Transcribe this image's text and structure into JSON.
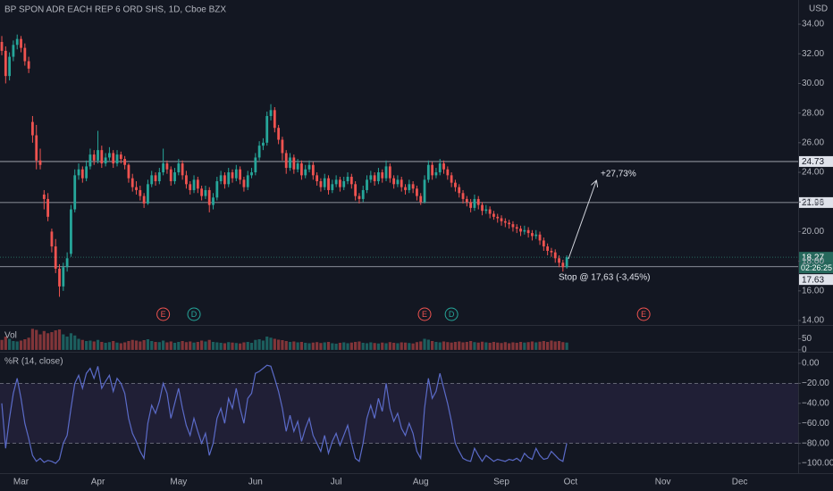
{
  "header": {
    "title": "BP SPON ADR EACH REP 6 ORD SHS, 1D, Cboe BZX",
    "currency": "USD"
  },
  "chart_data": [
    {
      "type": "candlestick",
      "up_color": "#26a69a",
      "down_color": "#ef5350",
      "xlim": [
        -0.47,
        207.2
      ],
      "ylim": [
        13.7,
        35.63
      ],
      "grid": false,
      "xticks": [
        {
          "value": 5,
          "label": "Mar"
        },
        {
          "value": 25,
          "label": "Apr"
        },
        {
          "value": 46,
          "label": "May"
        },
        {
          "value": 66,
          "label": "Jun"
        },
        {
          "value": 87,
          "label": "Jul"
        },
        {
          "value": 109,
          "label": "Aug"
        },
        {
          "value": 130,
          "label": "Sep"
        },
        {
          "value": 148,
          "label": "Oct"
        },
        {
          "value": 172,
          "label": "Nov"
        },
        {
          "value": 192,
          "label": "Dec"
        }
      ],
      "yticks": [
        {
          "value": 34,
          "label": "34.00"
        },
        {
          "value": 32,
          "label": "32.00"
        },
        {
          "value": 30,
          "label": "30.00"
        },
        {
          "value": 28,
          "label": "28.00"
        },
        {
          "value": 26,
          "label": "26.00"
        },
        {
          "value": 24,
          "label": "24.00"
        },
        {
          "value": 22,
          "label": "22.00"
        },
        {
          "value": 20,
          "label": "20.00"
        },
        {
          "value": 18,
          "label": "18.00"
        },
        {
          "value": 16,
          "label": "16.00"
        },
        {
          "value": 14,
          "label": "14.00"
        }
      ],
      "price_lines": [
        {
          "value": 24.73,
          "label": "24.73"
        },
        {
          "value": 21.96,
          "label": "21.96"
        },
        {
          "value": 17.63,
          "label": "17.63"
        }
      ],
      "last_price": {
        "value": 18.27,
        "label": "18.27",
        "countdown": "02:26:25",
        "color": "#26685c"
      },
      "annotations": [
        "+27,73%",
        "Stop @ 17,63 (-3,45%)"
      ],
      "events": [
        {
          "label": "E",
          "at": 42,
          "color": "#ef5350"
        },
        {
          "label": "D",
          "at": 50,
          "color": "#26a69a"
        },
        {
          "label": "E",
          "at": 110,
          "color": "#ef5350"
        },
        {
          "label": "D",
          "at": 117,
          "color": "#26a69a"
        },
        {
          "label": "E",
          "at": 167,
          "color": "#ef5350"
        }
      ],
      "ohlc": [
        [
          32.8,
          33.2,
          31.9,
          32.2
        ],
        [
          32.2,
          32.5,
          30.0,
          30.5
        ],
        [
          30.5,
          32.1,
          30.2,
          31.8
        ],
        [
          31.8,
          32.9,
          31.5,
          32.6
        ],
        [
          32.6,
          33.3,
          32.3,
          33.0
        ],
        [
          33.0,
          33.2,
          32.1,
          32.4
        ],
        [
          32.4,
          32.7,
          31.2,
          31.5
        ],
        [
          31.5,
          31.8,
          30.7,
          31.0
        ],
        [
          27.4,
          27.8,
          26.0,
          26.5
        ],
        [
          26.5,
          27.2,
          24.2,
          24.8
        ],
        [
          24.8,
          25.6,
          24.2,
          24.5
        ],
        [
          22.5,
          22.8,
          21.5,
          22.2
        ],
        [
          22.2,
          22.6,
          20.7,
          21.0
        ],
        [
          20.0,
          20.2,
          18.6,
          19.0
        ],
        [
          19.0,
          19.5,
          17.2,
          17.5
        ],
        [
          17.5,
          17.8,
          15.6,
          16.3
        ],
        [
          16.3,
          17.9,
          16.0,
          17.6
        ],
        [
          17.6,
          18.6,
          17.3,
          18.2
        ],
        [
          18.5,
          21.8,
          18.3,
          21.5
        ],
        [
          21.5,
          24.2,
          21.3,
          23.8
        ],
        [
          23.8,
          24.6,
          23.5,
          24.2
        ],
        [
          24.2,
          24.4,
          23.3,
          23.6
        ],
        [
          23.6,
          24.8,
          23.4,
          24.4
        ],
        [
          24.4,
          25.6,
          24.2,
          25.2
        ],
        [
          25.2,
          25.5,
          24.5,
          24.8
        ],
        [
          24.8,
          26.8,
          24.6,
          25.5
        ],
        [
          25.5,
          25.8,
          24.3,
          24.6
        ],
        [
          24.6,
          25.3,
          24.4,
          25.0
        ],
        [
          25.0,
          25.7,
          24.8,
          25.3
        ],
        [
          25.3,
          25.5,
          24.3,
          24.6
        ],
        [
          24.6,
          25.5,
          24.4,
          25.2
        ],
        [
          25.2,
          25.4,
          24.6,
          24.9
        ],
        [
          24.9,
          25.1,
          24.2,
          24.5
        ],
        [
          24.5,
          24.6,
          23.3,
          23.6
        ],
        [
          23.6,
          23.9,
          22.7,
          23.0
        ],
        [
          23.0,
          23.4,
          22.5,
          22.8
        ],
        [
          22.8,
          23.1,
          22.1,
          22.4
        ],
        [
          22.4,
          22.6,
          21.6,
          21.9
        ],
        [
          21.9,
          23.5,
          21.8,
          23.2
        ],
        [
          23.2,
          24.1,
          23.0,
          23.8
        ],
        [
          23.8,
          24.0,
          23.1,
          23.4
        ],
        [
          23.4,
          24.3,
          23.2,
          24.0
        ],
        [
          24.0,
          25.6,
          23.8,
          24.6
        ],
        [
          24.6,
          24.8,
          23.9,
          24.2
        ],
        [
          24.2,
          24.4,
          23.1,
          23.4
        ],
        [
          23.4,
          24.3,
          23.2,
          24.0
        ],
        [
          24.0,
          24.9,
          23.8,
          24.6
        ],
        [
          24.6,
          24.8,
          23.5,
          23.8
        ],
        [
          23.8,
          24.1,
          22.9,
          23.2
        ],
        [
          23.2,
          23.4,
          22.5,
          22.8
        ],
        [
          22.8,
          23.8,
          22.6,
          23.5
        ],
        [
          23.5,
          23.7,
          22.6,
          22.9
        ],
        [
          22.9,
          23.1,
          22.1,
          22.4
        ],
        [
          22.4,
          23.1,
          22.2,
          22.8
        ],
        [
          22.8,
          23.0,
          21.3,
          21.8
        ],
        [
          21.8,
          22.6,
          21.5,
          22.3
        ],
        [
          22.3,
          23.7,
          22.1,
          23.4
        ],
        [
          23.4,
          24.1,
          23.2,
          23.8
        ],
        [
          23.8,
          24.0,
          22.9,
          23.2
        ],
        [
          23.2,
          24.3,
          23.0,
          24.0
        ],
        [
          24.0,
          24.2,
          23.3,
          23.6
        ],
        [
          23.6,
          24.5,
          23.4,
          24.2
        ],
        [
          24.2,
          24.4,
          23.2,
          23.5
        ],
        [
          23.5,
          23.7,
          22.7,
          23.0
        ],
        [
          23.0,
          24.1,
          22.8,
          23.8
        ],
        [
          23.8,
          24.3,
          23.6,
          24.0
        ],
        [
          24.0,
          25.3,
          23.8,
          25.0
        ],
        [
          25.0,
          26.1,
          24.8,
          25.8
        ],
        [
          25.8,
          26.3,
          25.5,
          26.0
        ],
        [
          26.0,
          28.1,
          25.8,
          27.8
        ],
        [
          27.8,
          28.6,
          27.5,
          28.2
        ],
        [
          28.2,
          28.4,
          26.7,
          27.0
        ],
        [
          27.0,
          27.2,
          25.9,
          26.2
        ],
        [
          26.2,
          26.4,
          24.8,
          25.3
        ],
        [
          25.3,
          25.5,
          23.9,
          24.3
        ],
        [
          24.3,
          25.3,
          24.1,
          25.0
        ],
        [
          25.0,
          25.2,
          23.9,
          24.2
        ],
        [
          24.2,
          24.9,
          24.0,
          24.6
        ],
        [
          24.6,
          24.8,
          23.5,
          23.8
        ],
        [
          23.8,
          24.5,
          23.6,
          24.2
        ],
        [
          24.2,
          24.8,
          24.0,
          24.5
        ],
        [
          24.5,
          24.7,
          23.5,
          23.8
        ],
        [
          23.8,
          24.0,
          23.1,
          23.4
        ],
        [
          23.4,
          23.6,
          22.7,
          23.0
        ],
        [
          23.0,
          23.9,
          22.8,
          23.6
        ],
        [
          23.6,
          23.8,
          22.5,
          22.8
        ],
        [
          22.8,
          23.5,
          22.6,
          23.2
        ],
        [
          23.2,
          23.8,
          23.0,
          23.5
        ],
        [
          23.5,
          23.7,
          22.7,
          23.0
        ],
        [
          23.0,
          23.7,
          22.8,
          23.4
        ],
        [
          23.4,
          24.0,
          23.2,
          23.7
        ],
        [
          23.7,
          23.9,
          22.9,
          23.2
        ],
        [
          23.2,
          23.4,
          22.1,
          22.4
        ],
        [
          22.4,
          22.6,
          21.9,
          22.2
        ],
        [
          22.2,
          23.1,
          22.0,
          22.8
        ],
        [
          22.8,
          23.8,
          22.6,
          23.5
        ],
        [
          23.5,
          24.1,
          23.3,
          23.8
        ],
        [
          23.8,
          24.0,
          23.1,
          23.4
        ],
        [
          23.4,
          24.3,
          23.2,
          24.0
        ],
        [
          24.0,
          24.2,
          23.3,
          23.6
        ],
        [
          23.6,
          24.8,
          23.4,
          24.4
        ],
        [
          24.4,
          24.6,
          23.3,
          23.6
        ],
        [
          23.6,
          23.8,
          22.9,
          23.2
        ],
        [
          23.2,
          23.8,
          23.0,
          23.5
        ],
        [
          23.5,
          23.7,
          22.7,
          23.0
        ],
        [
          23.0,
          23.2,
          22.5,
          22.8
        ],
        [
          22.8,
          23.5,
          22.6,
          23.2
        ],
        [
          23.2,
          23.4,
          22.6,
          22.9
        ],
        [
          22.9,
          23.1,
          22.1,
          22.4
        ],
        [
          22.4,
          22.6,
          21.8,
          22.0
        ],
        [
          22.0,
          23.8,
          21.9,
          23.5
        ],
        [
          23.5,
          24.8,
          23.3,
          24.5
        ],
        [
          24.5,
          24.7,
          23.5,
          23.8
        ],
        [
          23.8,
          24.3,
          23.6,
          24.0
        ],
        [
          24.0,
          24.9,
          23.8,
          24.6
        ],
        [
          24.6,
          24.8,
          23.9,
          24.2
        ],
        [
          24.2,
          24.4,
          23.5,
          23.8
        ],
        [
          23.8,
          24.0,
          23.0,
          23.3
        ],
        [
          23.3,
          23.5,
          22.7,
          23.0
        ],
        [
          23.0,
          23.2,
          22.3,
          22.6
        ],
        [
          22.6,
          22.8,
          21.9,
          22.2
        ],
        [
          22.2,
          22.4,
          21.7,
          22.0
        ],
        [
          22.0,
          22.2,
          21.3,
          21.6
        ],
        [
          21.6,
          22.5,
          21.4,
          22.2
        ],
        [
          22.2,
          22.4,
          21.5,
          21.8
        ],
        [
          21.8,
          22.0,
          21.1,
          21.4
        ],
        [
          21.4,
          21.8,
          21.2,
          21.5
        ],
        [
          21.5,
          21.7,
          20.9,
          21.2
        ],
        [
          21.2,
          21.4,
          20.8,
          21.0
        ],
        [
          21.0,
          21.2,
          20.6,
          20.9
        ],
        [
          20.9,
          21.1,
          20.4,
          20.7
        ],
        [
          20.7,
          20.9,
          20.3,
          20.6
        ],
        [
          20.6,
          20.8,
          20.2,
          20.5
        ],
        [
          20.5,
          20.7,
          20.0,
          20.3
        ],
        [
          20.3,
          20.5,
          19.9,
          20.2
        ],
        [
          20.2,
          20.4,
          19.7,
          20.0
        ],
        [
          20.0,
          20.4,
          19.8,
          20.1
        ],
        [
          20.1,
          20.3,
          19.6,
          19.9
        ],
        [
          19.9,
          20.1,
          19.4,
          19.7
        ],
        [
          19.7,
          20.1,
          19.5,
          19.8
        ],
        [
          19.8,
          20.0,
          19.1,
          19.4
        ],
        [
          19.4,
          19.6,
          18.7,
          19.0
        ],
        [
          19.0,
          19.2,
          18.4,
          18.7
        ],
        [
          18.7,
          18.9,
          18.3,
          18.6
        ],
        [
          18.6,
          18.8,
          17.9,
          18.2
        ],
        [
          18.2,
          18.4,
          17.6,
          17.9
        ],
        [
          17.9,
          18.1,
          17.3,
          17.6
        ],
        [
          17.6,
          18.4,
          17.5,
          18.27
        ]
      ]
    },
    {
      "type": "bar",
      "name": "Vol",
      "ylim": [
        -8.3,
        108.3
      ],
      "yticks": [
        50,
        0
      ],
      "values": [
        45,
        60,
        50,
        40,
        38,
        42,
        48,
        55,
        95,
        90,
        70,
        85,
        75,
        80,
        88,
        92,
        70,
        60,
        75,
        65,
        50,
        45,
        40,
        42,
        38,
        45,
        36,
        32,
        35,
        40,
        33,
        30,
        34,
        40,
        45,
        42,
        38,
        44,
        48,
        40,
        36,
        35,
        42,
        34,
        38,
        32,
        36,
        40,
        35,
        38,
        33,
        36,
        42,
        38,
        45,
        36,
        34,
        32,
        30,
        35,
        33,
        31,
        29,
        34,
        36,
        32,
        45,
        48,
        42,
        60,
        55,
        50,
        46,
        44,
        40,
        36,
        38,
        34,
        36,
        32,
        30,
        33,
        35,
        31,
        34,
        36,
        30,
        28,
        32,
        34,
        30,
        33,
        36,
        38,
        32,
        30,
        34,
        31,
        29,
        33,
        30,
        35,
        32,
        30,
        34,
        33,
        31,
        29,
        35,
        38,
        50,
        46,
        40,
        36,
        34,
        38,
        35,
        33,
        36,
        38,
        34,
        36,
        40,
        35,
        33,
        37,
        34,
        32,
        36,
        33,
        31,
        35,
        30,
        34,
        32,
        36,
        33,
        35,
        38,
        34,
        37,
        40,
        36,
        42,
        38,
        40,
        35,
        33
      ]
    },
    {
      "type": "line",
      "title": "%R (14, close)",
      "color": "#5b6bc8",
      "band": [
        -80,
        -20
      ],
      "band_color": "#7e57c2",
      "ylim": [
        -109.8,
        10.7
      ],
      "yticks": [
        {
          "value": 0,
          "label": "0.00"
        },
        {
          "value": -20,
          "label": "−20.00"
        },
        {
          "value": -40,
          "label": "−40.00"
        },
        {
          "value": -60,
          "label": "−60.00"
        },
        {
          "value": -80,
          "label": "−80.00"
        },
        {
          "value": -100,
          "label": "−100.00"
        }
      ],
      "values": [
        -40,
        -85,
        -55,
        -30,
        -15,
        -35,
        -60,
        -75,
        -92,
        -98,
        -95,
        -99,
        -97,
        -98,
        -100,
        -96,
        -80,
        -72,
        -45,
        -20,
        -12,
        -25,
        -10,
        -5,
        -15,
        -3,
        -25,
        -18,
        -12,
        -28,
        -15,
        -20,
        -30,
        -55,
        -70,
        -78,
        -88,
        -95,
        -60,
        -42,
        -50,
        -38,
        -20,
        -30,
        -55,
        -40,
        -25,
        -45,
        -62,
        -72,
        -55,
        -68,
        -80,
        -70,
        -92,
        -80,
        -55,
        -45,
        -60,
        -35,
        -45,
        -25,
        -45,
        -60,
        -35,
        -30,
        -10,
        -8,
        -5,
        -2,
        -3,
        -15,
        -28,
        -45,
        -68,
        -52,
        -68,
        -58,
        -78,
        -65,
        -55,
        -72,
        -80,
        -88,
        -72,
        -90,
        -78,
        -70,
        -82,
        -72,
        -62,
        -80,
        -95,
        -98,
        -80,
        -55,
        -42,
        -55,
        -35,
        -48,
        -20,
        -45,
        -58,
        -50,
        -65,
        -72,
        -60,
        -70,
        -88,
        -95,
        -45,
        -15,
        -35,
        -28,
        -10,
        -25,
        -40,
        -58,
        -80,
        -88,
        -95,
        -97,
        -98,
        -85,
        -92,
        -98,
        -92,
        -95,
        -98,
        -96,
        -97,
        -98,
        -96,
        -97,
        -95,
        -98,
        -90,
        -94,
        -96,
        -85,
        -92,
        -96,
        -95,
        -88,
        -92,
        -96,
        -98,
        -80
      ]
    }
  ]
}
